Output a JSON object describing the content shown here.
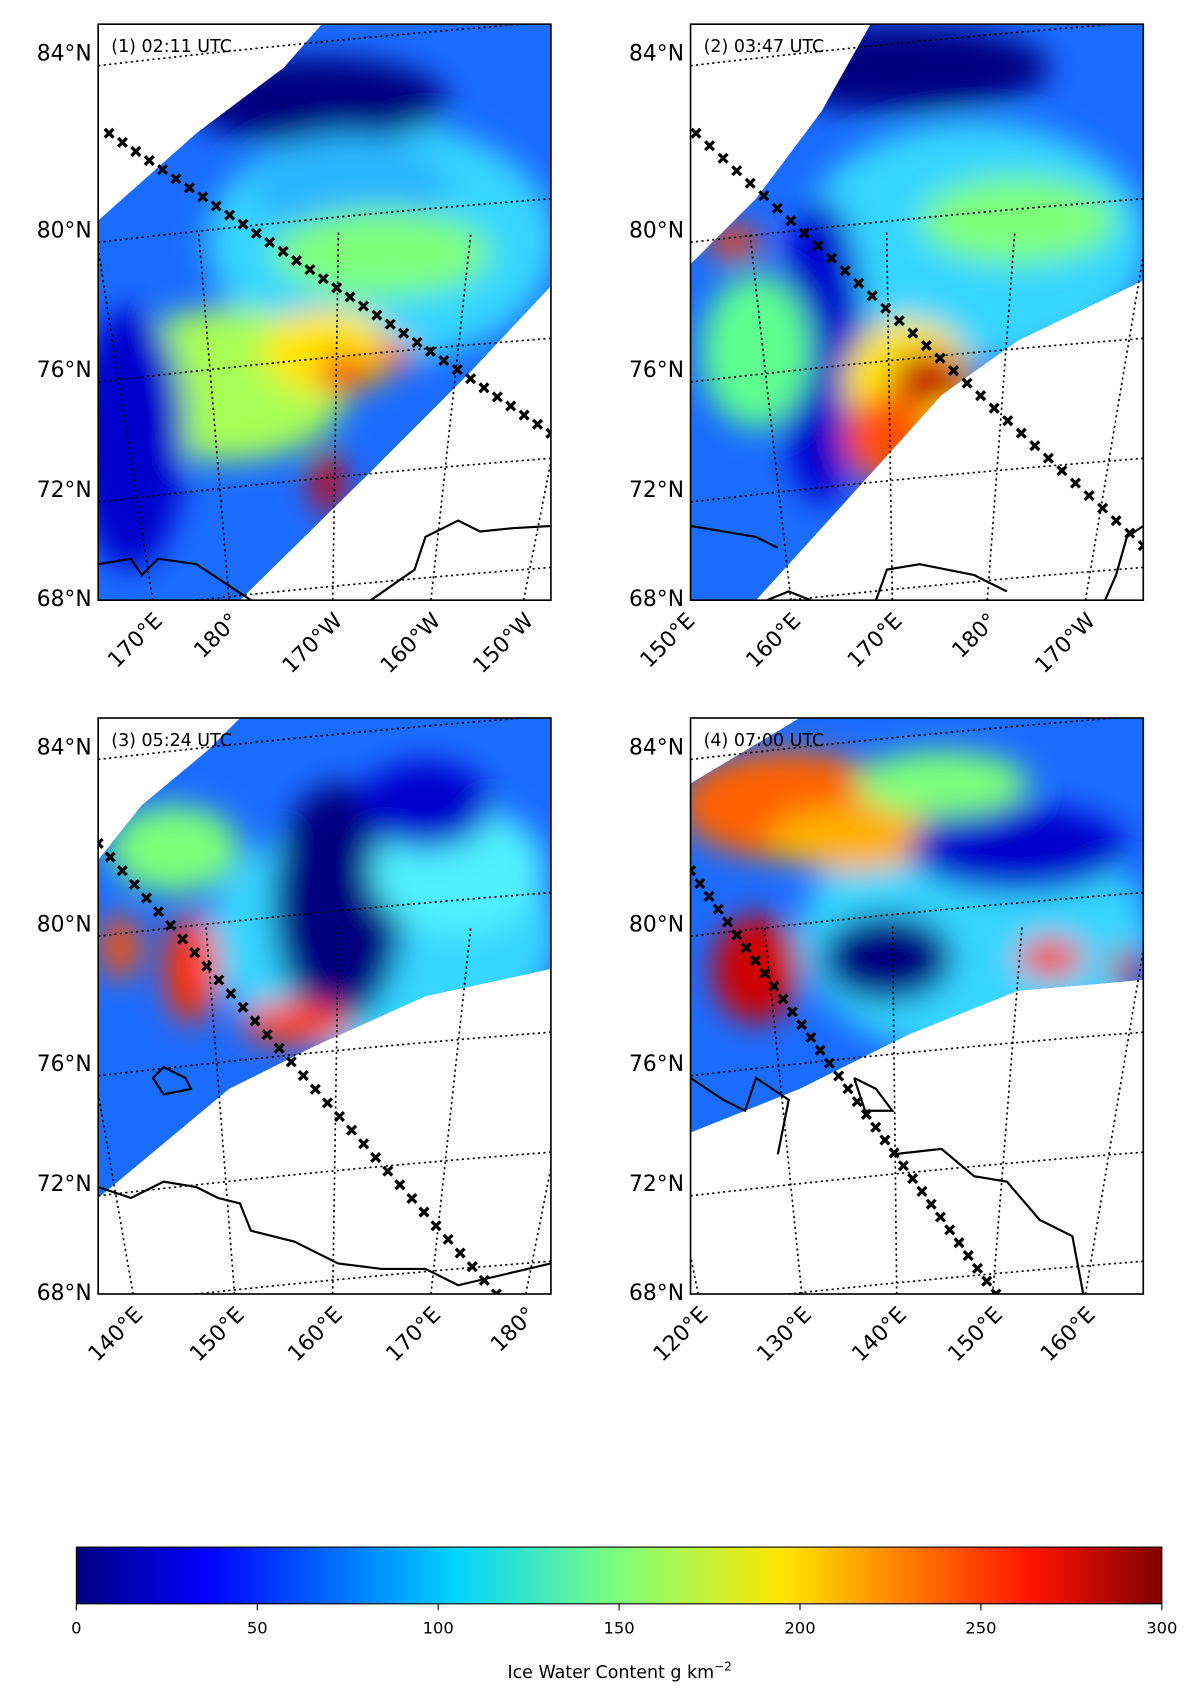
{
  "panels": [
    {
      "label": "(1) 02:11 UTC",
      "lat_labels": [
        "84°N",
        "80°N",
        "76°N",
        "72°N",
        "68°N"
      ],
      "lon_labels": [
        "170°E",
        "180°",
        "170°W",
        "160°W",
        "150°W"
      ]
    },
    {
      "label": "(2) 03:47 UTC",
      "lat_labels": [
        "84°N",
        "80°N",
        "76°N",
        "72°N",
        "68°N"
      ],
      "lon_labels": [
        "150°E",
        "160°E",
        "170°E",
        "180°",
        "170°W"
      ]
    },
    {
      "label": "(3) 05:24 UTC",
      "lat_labels": [
        "84°N",
        "80°N",
        "76°N",
        "72°N",
        "68°N"
      ],
      "lon_labels": [
        "140°E",
        "150°E",
        "160°E",
        "170°E",
        "180°"
      ]
    },
    {
      "label": "(4) 07:00 UTC",
      "lat_labels": [
        "84°N",
        "80°N",
        "76°N",
        "72°N",
        "68°N"
      ],
      "lon_labels": [
        "120°E",
        "130°E",
        "140°E",
        "150°E",
        "160°E"
      ]
    }
  ],
  "colorbar": {
    "lim": [
      0,
      300
    ],
    "ticks": [
      0,
      50,
      100,
      150,
      200,
      250,
      300
    ],
    "label": "Ice Water Content g km",
    "label_sup": "−2"
  }
}
